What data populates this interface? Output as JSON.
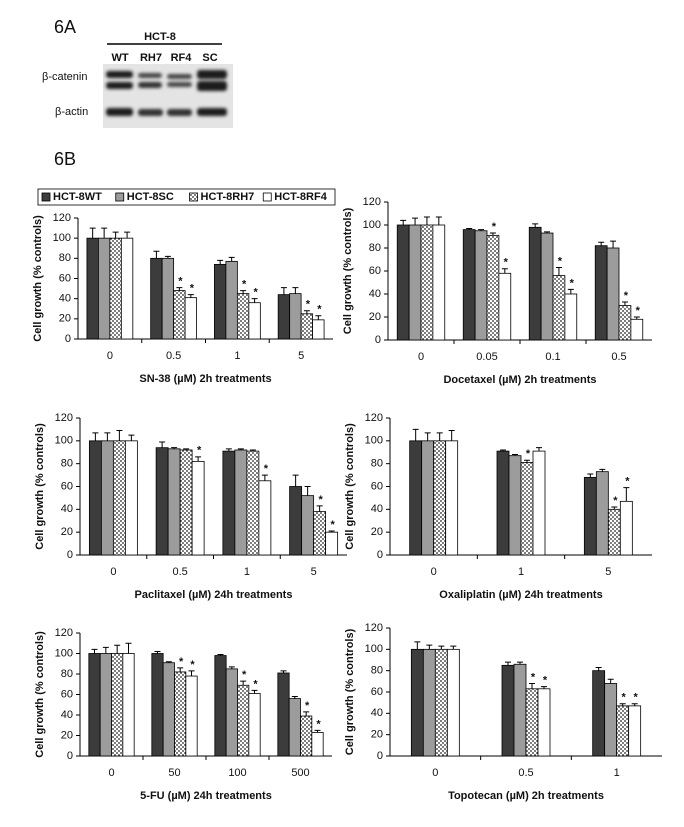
{
  "panel_a": {
    "label": "6A",
    "cell_line": "HCT-8",
    "lanes": [
      "WT",
      "RH7",
      "RF4",
      "SC"
    ],
    "rows": [
      "β-catenin",
      "β-actin"
    ]
  },
  "panel_b_label": "6B",
  "chart_data": [
    {
      "type": "bar",
      "legend": "top",
      "ylabel": "Cell growth (% controls)",
      "xlabel": "SN-38 (µM) 2h treatments",
      "categories": [
        "0",
        "0.5",
        "1",
        "5"
      ],
      "ylim": [
        0,
        120
      ],
      "yticks": [
        0,
        20,
        40,
        60,
        80,
        100,
        120
      ],
      "series": [
        {
          "name": "HCT-8WT",
          "color": "#3c3c3c",
          "values": [
            100,
            80,
            74,
            44
          ],
          "errors": [
            10,
            7,
            4,
            7
          ],
          "annotations": [
            null,
            null,
            null,
            null
          ]
        },
        {
          "name": "HCT-8SC",
          "color": "#9c9c9c",
          "values": [
            100,
            80,
            77,
            45
          ],
          "errors": [
            10,
            2,
            4,
            6
          ],
          "annotations": [
            null,
            null,
            null,
            null
          ]
        },
        {
          "name": "HCT-8RH7",
          "color": "#ffffff",
          "pattern": "dots",
          "values": [
            100,
            48,
            45,
            25
          ],
          "errors": [
            6,
            3,
            3,
            3
          ],
          "annotations": [
            null,
            "*",
            "*",
            "*"
          ]
        },
        {
          "name": "HCT-8RF4",
          "color": "#ffffff",
          "values": [
            100,
            41,
            36,
            19
          ],
          "errors": [
            6,
            3,
            4,
            4
          ],
          "annotations": [
            null,
            "*",
            "*",
            "*"
          ]
        }
      ]
    },
    {
      "type": "bar",
      "ylabel": "Cell growth (% controls)",
      "xlabel": "Docetaxel (µM) 2h treatments",
      "categories": [
        "0",
        "0.05",
        "0.1",
        "0.5"
      ],
      "ylim": [
        0,
        120
      ],
      "yticks": [
        0,
        20,
        40,
        60,
        80,
        100,
        120
      ],
      "series": [
        {
          "values": [
            100,
            96,
            98,
            82
          ],
          "errors": [
            4,
            1,
            3,
            3
          ],
          "annotations": [
            null,
            null,
            null,
            null
          ]
        },
        {
          "values": [
            100,
            95,
            93,
            80
          ],
          "errors": [
            6,
            1,
            1,
            6
          ],
          "annotations": [
            null,
            null,
            null,
            null
          ]
        },
        {
          "values": [
            100,
            91,
            56,
            30
          ],
          "errors": [
            7,
            2,
            7,
            3
          ],
          "annotations": [
            null,
            "*",
            "*",
            "*"
          ]
        },
        {
          "values": [
            100,
            58,
            40,
            18
          ],
          "errors": [
            7,
            4,
            4,
            2
          ],
          "annotations": [
            null,
            "*",
            "*",
            "*"
          ]
        }
      ]
    },
    {
      "type": "bar",
      "ylabel": "Cell growth (% controls)",
      "xlabel": "Paclitaxel (µM) 24h treatments",
      "categories": [
        "0",
        "0.5",
        "1",
        "5"
      ],
      "ylim": [
        0,
        120
      ],
      "yticks": [
        0,
        20,
        40,
        60,
        80,
        100,
        120
      ],
      "series": [
        {
          "values": [
            100,
            94,
            91,
            60
          ],
          "errors": [
            7,
            5,
            2,
            10
          ],
          "annotations": [
            null,
            null,
            null,
            null
          ]
        },
        {
          "values": [
            100,
            93,
            92,
            52
          ],
          "errors": [
            7,
            1,
            1,
            8
          ],
          "annotations": [
            null,
            null,
            null,
            null
          ]
        },
        {
          "values": [
            100,
            92,
            91,
            38
          ],
          "errors": [
            9,
            1,
            1,
            5
          ],
          "annotations": [
            null,
            null,
            null,
            "*"
          ]
        },
        {
          "values": [
            100,
            82,
            65,
            20
          ],
          "errors": [
            5,
            4,
            5,
            1
          ],
          "annotations": [
            null,
            "*",
            "*",
            "*"
          ]
        }
      ]
    },
    {
      "type": "bar",
      "ylabel": "Cell growth (% controls)",
      "xlabel": "Oxaliplatin (µM) 24h treatments",
      "categories": [
        "0",
        "1",
        "5"
      ],
      "ylim": [
        0,
        120
      ],
      "yticks": [
        0,
        20,
        40,
        60,
        80,
        100,
        120
      ],
      "series": [
        {
          "values": [
            100,
            91,
            68
          ],
          "errors": [
            10,
            1,
            3
          ],
          "annotations": [
            null,
            null,
            null
          ]
        },
        {
          "values": [
            100,
            87,
            73
          ],
          "errors": [
            7,
            1,
            2
          ],
          "annotations": [
            null,
            null,
            null
          ]
        },
        {
          "values": [
            100,
            81,
            40
          ],
          "errors": [
            7,
            2,
            2
          ],
          "annotations": [
            null,
            "*",
            "*"
          ]
        },
        {
          "values": [
            100,
            91,
            47
          ],
          "errors": [
            9,
            3,
            12
          ],
          "annotations": [
            null,
            null,
            "*"
          ]
        }
      ]
    },
    {
      "type": "bar",
      "ylabel": "Cell growth (% controls)",
      "xlabel": "5-FU (µM) 24h treatments",
      "categories": [
        "0",
        "50",
        "100",
        "500"
      ],
      "ylim": [
        0,
        120
      ],
      "yticks": [
        0,
        20,
        40,
        60,
        80,
        100,
        120
      ],
      "series": [
        {
          "values": [
            100,
            100,
            98,
            81
          ],
          "errors": [
            4,
            2,
            1,
            2
          ],
          "annotations": [
            null,
            null,
            null,
            null
          ]
        },
        {
          "values": [
            100,
            91,
            85,
            56
          ],
          "errors": [
            6,
            1,
            2,
            2
          ],
          "annotations": [
            null,
            null,
            null,
            null
          ]
        },
        {
          "values": [
            100,
            82,
            69,
            39
          ],
          "errors": [
            8,
            4,
            4,
            4
          ],
          "annotations": [
            null,
            "*",
            "*",
            "*"
          ]
        },
        {
          "values": [
            100,
            78,
            61,
            23
          ],
          "errors": [
            10,
            5,
            3,
            2
          ],
          "annotations": [
            null,
            "*",
            "*",
            "*"
          ]
        }
      ]
    },
    {
      "type": "bar",
      "ylabel": "Cell growth (% controls)",
      "xlabel": "Topotecan (µM) 2h treatments",
      "categories": [
        "0",
        "0.5",
        "1"
      ],
      "ylim": [
        0,
        120
      ],
      "yticks": [
        0,
        20,
        40,
        60,
        80,
        100,
        120
      ],
      "series": [
        {
          "values": [
            100,
            85,
            80
          ],
          "errors": [
            7,
            3,
            3
          ],
          "annotations": [
            null,
            null,
            null
          ]
        },
        {
          "values": [
            100,
            86,
            68
          ],
          "errors": [
            4,
            2,
            4
          ],
          "annotations": [
            null,
            null,
            null
          ]
        },
        {
          "values": [
            100,
            63,
            47
          ],
          "errors": [
            3,
            5,
            2
          ],
          "annotations": [
            null,
            "*",
            "*"
          ]
        },
        {
          "values": [
            100,
            63,
            47
          ],
          "errors": [
            3,
            2,
            2
          ],
          "annotations": [
            null,
            "*",
            "*"
          ]
        }
      ]
    }
  ]
}
